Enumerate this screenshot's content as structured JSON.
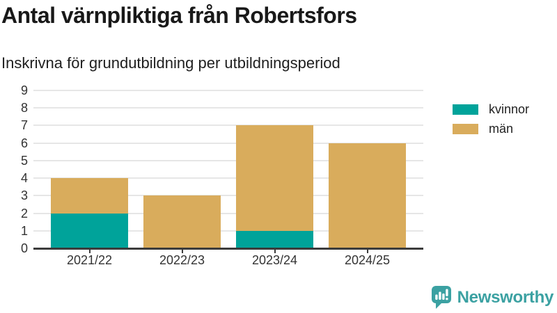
{
  "chart_data": {
    "type": "bar",
    "stacked": true,
    "title": "Antal värnpliktiga från Robertsfors",
    "subtitle": "Inskrivna för grundutbildning per utbildningsperiod",
    "categories": [
      "2021/22",
      "2022/23",
      "2023/24",
      "2024/25"
    ],
    "series": [
      {
        "name": "kvinnor",
        "color": "#00a39a",
        "values": [
          2,
          0,
          1,
          0
        ]
      },
      {
        "name": "män",
        "color": "#d9ac5c",
        "values": [
          2,
          3,
          6,
          6
        ]
      }
    ],
    "totals": [
      4,
      3,
      7,
      6
    ],
    "xlabel": "",
    "ylabel": "",
    "ylim": [
      0,
      9
    ],
    "yticks": [
      0,
      1,
      2,
      3,
      4,
      5,
      6,
      7,
      8,
      9
    ],
    "grid": true,
    "legend_position": "right-top"
  },
  "branding": {
    "logo_text": "Newsworthy",
    "logo_color": "#3ba1a2"
  },
  "style_colors": {
    "axis": "#3b3b3b",
    "gridline": "#e6e6e6",
    "tick_text": "#333333",
    "title_text": "#191919"
  }
}
